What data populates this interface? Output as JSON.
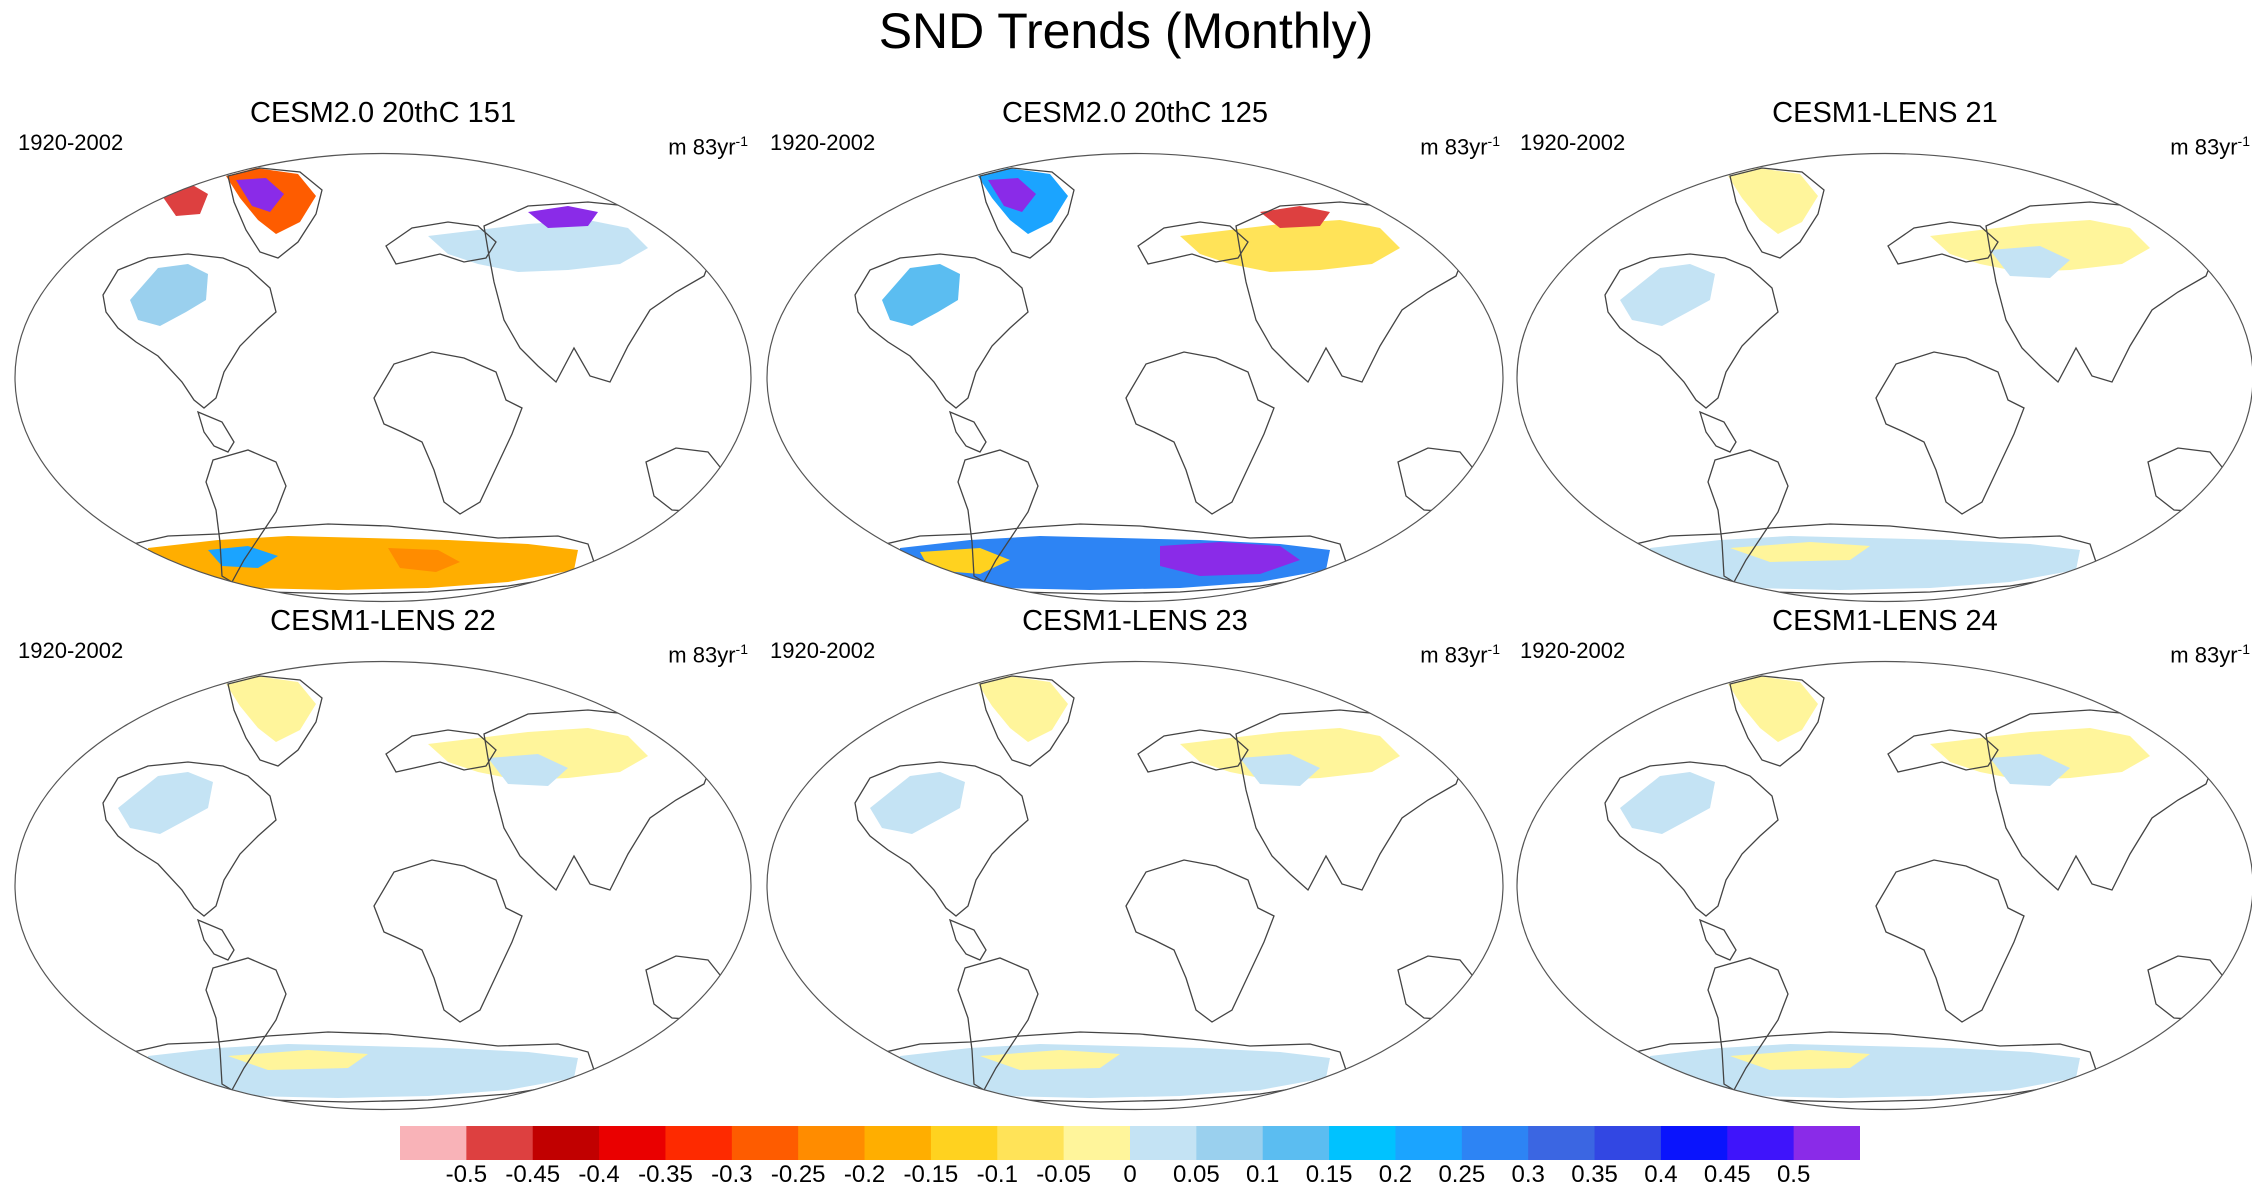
{
  "title": "SND Trends (Monthly)",
  "panels": [
    {
      "title": "CESM2.0 20thC 151",
      "period": "1920-2002",
      "units_base": "m 83yr",
      "units_exp": "-1",
      "intensity": "strong-red"
    },
    {
      "title": "CESM2.0 20thC 125",
      "period": "1920-2002",
      "units_base": "m 83yr",
      "units_exp": "-1",
      "intensity": "strong-blue"
    },
    {
      "title": "CESM1-LENS 21",
      "period": "1920-2002",
      "units_base": "m 83yr",
      "units_exp": "-1",
      "intensity": "weak"
    },
    {
      "title": "CESM1-LENS 22",
      "period": "1920-2002",
      "units_base": "m 83yr",
      "units_exp": "-1",
      "intensity": "weak"
    },
    {
      "title": "CESM1-LENS 23",
      "period": "1920-2002",
      "units_base": "m 83yr",
      "units_exp": "-1",
      "intensity": "weak"
    },
    {
      "title": "CESM1-LENS 24",
      "period": "1920-2002",
      "units_base": "m 83yr",
      "units_exp": "-1",
      "intensity": "weak"
    }
  ],
  "colorbar": {
    "colors": [
      "#f9b3b8",
      "#dd4040",
      "#c10000",
      "#ea0000",
      "#fe2a00",
      "#fe5c00",
      "#ff8c00",
      "#ffae00",
      "#ffd21f",
      "#ffe358",
      "#fff59b",
      "#c4e3f4",
      "#9ad0ee",
      "#5bbdf1",
      "#00c2ff",
      "#1ba4ff",
      "#2d84f4",
      "#3b66e2",
      "#3247e3",
      "#0a14fd",
      "#3f14fb",
      "#8a2be8"
    ],
    "labels": [
      "-0.5",
      "-0.45",
      "-0.4",
      "-0.35",
      "-0.3",
      "-0.25",
      "-0.2",
      "-0.15",
      "-0.1",
      "-0.05",
      "0",
      "0.05",
      "0.1",
      "0.15",
      "0.2",
      "0.25",
      "0.3",
      "0.35",
      "0.4",
      "0.45",
      "0.5"
    ]
  }
}
